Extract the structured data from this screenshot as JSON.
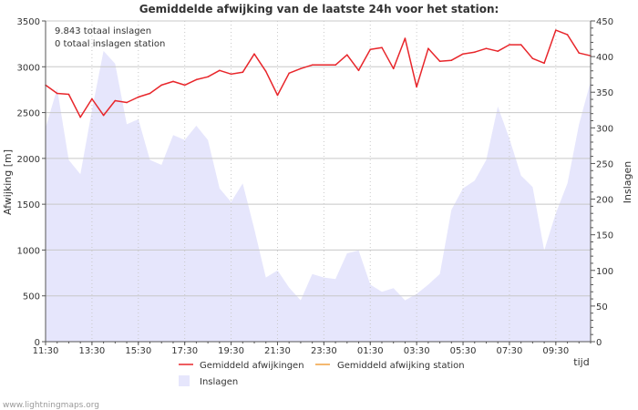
{
  "chart_data": {
    "type": "line",
    "title": "Gemiddelde afwijking van de laatste 24h voor het station:",
    "ylabel": "Afwijking  [m]",
    "y2label": "Inslagen",
    "xlabel": "tijd",
    "ylim": [
      0,
      3500
    ],
    "y2lim": [
      0,
      450
    ],
    "y_ticks": [
      0,
      500,
      1000,
      1500,
      2000,
      2500,
      3000,
      3500
    ],
    "y2_ticks": [
      0,
      50,
      100,
      150,
      200,
      250,
      300,
      350,
      400,
      450
    ],
    "x_ticks": [
      "11:30",
      "13:30",
      "15:30",
      "17:30",
      "19:30",
      "21:30",
      "23:30",
      "01:30",
      "03:30",
      "05:30",
      "07:30",
      "09:30"
    ],
    "x_tick_steps": [
      0,
      4,
      8,
      12,
      16,
      20,
      24,
      28,
      32,
      36,
      40,
      44
    ],
    "n_steps": 47,
    "annotations": [
      "9.843 totaal inslagen",
      "0 totaal inslagen station"
    ],
    "series": [
      {
        "name": "Gemiddeld afwijkingen",
        "kind": "line",
        "axis": "left",
        "color": "#e8262b",
        "values": [
          2800,
          2710,
          2700,
          2450,
          2650,
          2470,
          2630,
          2610,
          2670,
          2710,
          2800,
          2840,
          2800,
          2860,
          2890,
          2960,
          2920,
          2940,
          3140,
          2950,
          2690,
          2930,
          2980,
          3020,
          3020,
          3020,
          3130,
          2960,
          3190,
          3210,
          2980,
          3310,
          2780,
          3200,
          3060,
          3070,
          3140,
          3160,
          3200,
          3170,
          3240,
          3240,
          3090,
          3040,
          3400,
          3350,
          3150,
          3120
        ]
      },
      {
        "name": "Gemiddeld afwijking station",
        "kind": "line",
        "axis": "left",
        "color": "#f0a040",
        "values": []
      },
      {
        "name": "Inslagen",
        "kind": "area",
        "axis": "right",
        "color": "#e6e6fc",
        "values": [
          300,
          355,
          255,
          235,
          325,
          408,
          390,
          305,
          312,
          255,
          248,
          290,
          283,
          303,
          283,
          215,
          196,
          222,
          158,
          90,
          100,
          76,
          58,
          95,
          90,
          88,
          124,
          128,
          80,
          70,
          75,
          58,
          67,
          80,
          95,
          185,
          215,
          226,
          255,
          330,
          285,
          233,
          217,
          128,
          180,
          222,
          305,
          365
        ]
      }
    ]
  },
  "footer": {
    "source": "www.lightningmaps.org"
  }
}
